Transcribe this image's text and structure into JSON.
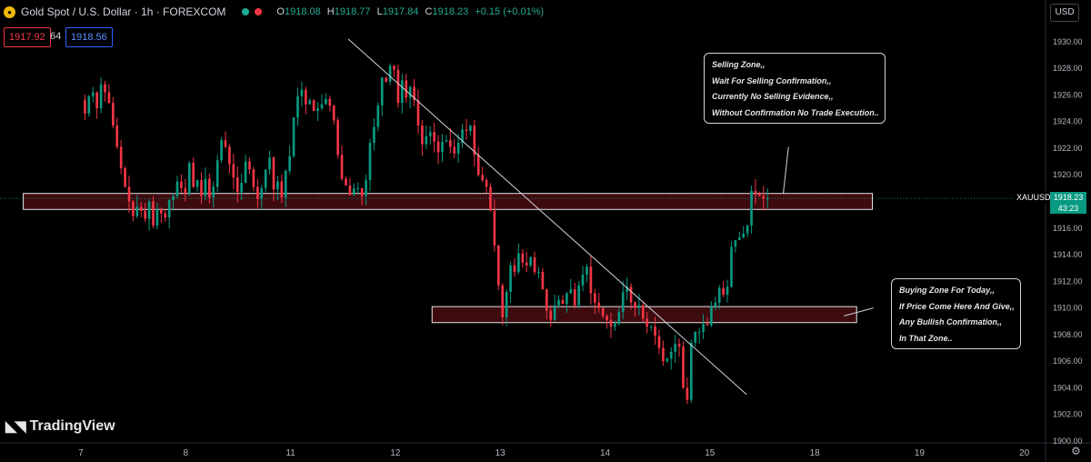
{
  "header": {
    "symbol_icon": "gold-coin-icon",
    "title": "Gold Spot / U.S. Dollar · 1h · FOREXCOM",
    "status_colors": [
      "#22ab94",
      "#f23645"
    ],
    "ohlc": {
      "o_label": "O",
      "o": "1918.08",
      "h_label": "H",
      "h": "1918.77",
      "l_label": "L",
      "l": "1917.84",
      "c_label": "C",
      "c": "1918.23",
      "change": "+0.15 (+0.01%)"
    }
  },
  "trade": {
    "bid": "1917.92",
    "spread": "64",
    "ask": "1918.56"
  },
  "currency_button": "USD",
  "annotations": {
    "sell": [
      "Selling Zone,,",
      "Wait For Selling Confirmation,,",
      "Currently No Selling Evidence,,",
      "Without Confirmation No Trade Execution.."
    ],
    "buy": [
      "Buying Zone For Today,,",
      "If Price Come Here And Give,,",
      "Any Bullish Confirmation,,",
      "In That Zone.."
    ]
  },
  "logo_text": "TradingView",
  "current_price": {
    "symbol": "XAUUSD",
    "price": "1918.23",
    "countdown": "43:23"
  },
  "colors": {
    "up": "#089981",
    "down": "#f23645",
    "zone_fill": "#3d0a0e"
  },
  "chart_data": {
    "type": "candlestick",
    "y_axis": {
      "ticks": [
        "1930.00",
        "1928.00",
        "1926.00",
        "1924.00",
        "1922.00",
        "1920.00",
        "1918.00",
        "1916.00",
        "1914.00",
        "1912.00",
        "1910.00",
        "1908.00",
        "1906.00",
        "1904.00",
        "1902.00",
        "1900.00"
      ],
      "range": [
        1900,
        1930.4
      ]
    },
    "x_axis": {
      "ticks": [
        "7",
        "8",
        "11",
        "12",
        "13",
        "14",
        "15",
        "18",
        "19",
        "20"
      ],
      "days_after_7": [
        0,
        1,
        2,
        3,
        4,
        5,
        6,
        7,
        8,
        9
      ]
    },
    "series_closes_x_days": [
      0,
      6.55
    ],
    "closes": [
      1925.6,
      1924.6,
      1925.9,
      1926.2,
      1925.0,
      1926.8,
      1926.2,
      1925.4,
      1923.7,
      1922.1,
      1920.5,
      1919.1,
      1918.0,
      1916.9,
      1917.6,
      1917.3,
      1916.7,
      1918.0,
      1916.2,
      1917.4,
      1917.1,
      1916.8,
      1918.1,
      1918.4,
      1919.5,
      1919.0,
      1918.6,
      1920.9,
      1919.1,
      1919.6,
      1918.4,
      1919.7,
      1918.3,
      1919.1,
      1921.1,
      1922.6,
      1922.1,
      1920.8,
      1919.8,
      1918.7,
      1919.4,
      1921.0,
      1920.4,
      1919.1,
      1918.2,
      1919.0,
      1920.4,
      1921.3,
      1918.9,
      1919.5,
      1918.3,
      1920.3,
      1921.4,
      1924.3,
      1925.9,
      1926.4,
      1925.3,
      1925.6,
      1924.8,
      1925.0,
      1925.3,
      1925.7,
      1925.2,
      1924.1,
      1921.5,
      1919.7,
      1919.2,
      1918.5,
      1919.0,
      1919.0,
      1918.4,
      1919.6,
      1922.4,
      1923.6,
      1925.2,
      1927.3,
      1927.0,
      1928.2,
      1927.9,
      1925.4,
      1927.1,
      1925.8,
      1926.6,
      1925.6,
      1923.7,
      1922.3,
      1922.9,
      1923.2,
      1922.5,
      1921.7,
      1922.5,
      1922.6,
      1922.1,
      1921.6,
      1922.4,
      1923.4,
      1923.3,
      1923.7,
      1921.5,
      1920.0,
      1919.6,
      1919.1,
      1917.3,
      1914.7,
      1911.7,
      1909.3,
      1911.2,
      1913.2,
      1912.7,
      1914.1,
      1913.4,
      1913.2,
      1913.8,
      1912.7,
      1912.7,
      1911.4,
      1909.8,
      1909.1,
      1910.2,
      1910.6,
      1910.3,
      1911.1,
      1911.4,
      1910.2,
      1911.7,
      1912.5,
      1913.1,
      1911.1,
      1910.4,
      1910.0,
      1909.4,
      1909.1,
      1908.6,
      1908.8,
      1909.7,
      1911.2,
      1911.6,
      1910.4,
      1910.0,
      1910.2,
      1909.2,
      1908.6,
      1908.6,
      1907.9,
      1907.0,
      1906.0,
      1906.2,
      1906.7,
      1907.3,
      1907.1,
      1904.0,
      1903.1,
      1907.4,
      1908.2,
      1908.2,
      1908.8,
      1908.7,
      1910.1,
      1910.4,
      1911.5,
      1911.0,
      1911.6,
      1914.6,
      1915.1,
      1915.3,
      1915.6,
      1916.2,
      1918.8,
      1918.6,
      1918.4,
      1918.2,
      1918.23
    ],
    "zones": [
      {
        "name": "selling-zone",
        "y_range": [
          1917.4,
          1918.6
        ],
        "x_days": [
          -0.55,
          7.55
        ]
      },
      {
        "name": "buying-zone",
        "y_range": [
          1908.9,
          1910.1
        ],
        "x_days": [
          3.35,
          7.4
        ]
      }
    ],
    "trendline": {
      "from": {
        "x_days": 2.55,
        "y": 1930.2
      },
      "to": {
        "x_days": 6.35,
        "y": 1903.5
      }
    },
    "callout_pointers": [
      {
        "from": {
          "x_days": 6.75,
          "y": 1922.1
        },
        "to": {
          "x_days": 6.7,
          "y": 1918.6
        }
      },
      {
        "from": {
          "x_days": 7.56,
          "y": 1910.0
        },
        "to": {
          "x_days": 7.28,
          "y": 1909.4
        }
      }
    ],
    "current_price": 1918.23,
    "grid": false,
    "legend": "none"
  }
}
